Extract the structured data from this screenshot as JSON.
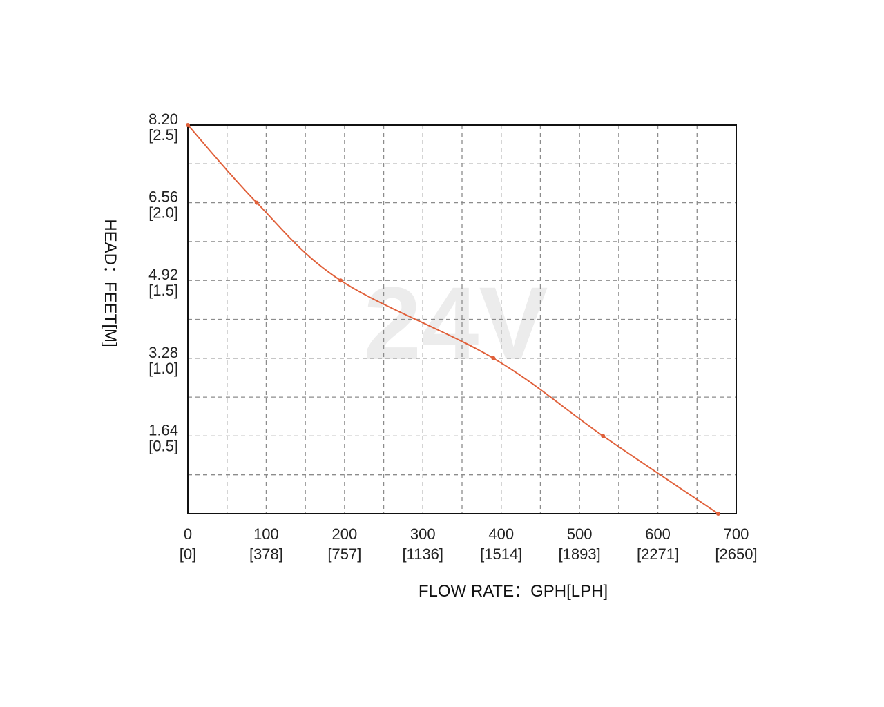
{
  "chart_data": {
    "type": "line",
    "title": "",
    "watermark": "24V",
    "xlabel": "FLOW RATE：GPH[LPH]",
    "ylabel": "HEAD：FEET[M]",
    "xlim": [
      0,
      700
    ],
    "ylim": [
      0,
      8.2
    ],
    "grid": true,
    "x_ticks": [
      {
        "value": 0,
        "label": "0",
        "sublabel": "[0]"
      },
      {
        "value": 100,
        "label": "100",
        "sublabel": "[378]"
      },
      {
        "value": 200,
        "label": "200",
        "sublabel": "[757]"
      },
      {
        "value": 300,
        "label": "300",
        "sublabel": "[1136]"
      },
      {
        "value": 400,
        "label": "400",
        "sublabel": "[1514]"
      },
      {
        "value": 500,
        "label": "500",
        "sublabel": "[1893]"
      },
      {
        "value": 600,
        "label": "600",
        "sublabel": "[2271]"
      },
      {
        "value": 700,
        "label": "700",
        "sublabel": "[2650]"
      }
    ],
    "y_ticks": [
      {
        "value": 1.64,
        "label": "1.64",
        "sublabel": "[0.5]"
      },
      {
        "value": 3.28,
        "label": "3.28",
        "sublabel": "[1.0]"
      },
      {
        "value": 4.92,
        "label": "4.92",
        "sublabel": "[1.5]"
      },
      {
        "value": 6.56,
        "label": "6.56",
        "sublabel": "[2.0]"
      },
      {
        "value": 8.2,
        "label": "8.20",
        "sublabel": "[2.5]"
      }
    ],
    "series": [
      {
        "color": "#e0603a",
        "x": [
          0,
          88,
          195,
          390,
          530,
          677
        ],
        "y": [
          8.2,
          6.56,
          4.92,
          3.28,
          1.64,
          0
        ]
      }
    ]
  }
}
